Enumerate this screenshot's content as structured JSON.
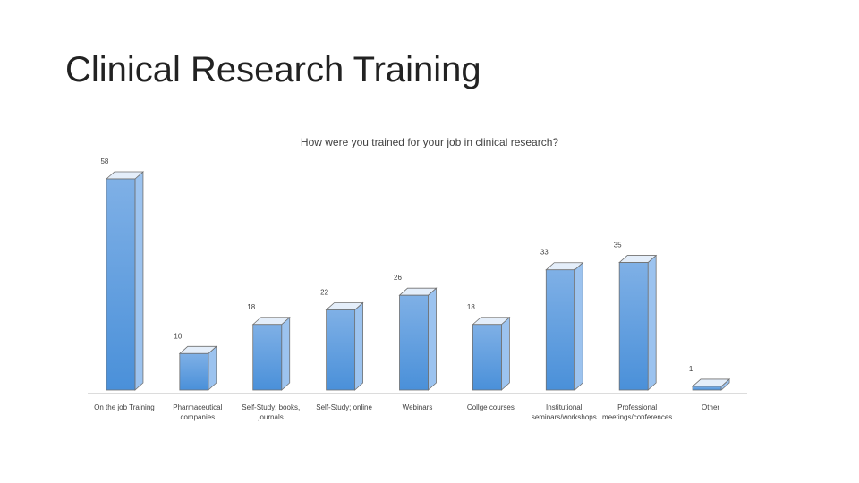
{
  "slide": {
    "title": "Clinical Research Training"
  },
  "chart_data": {
    "type": "bar",
    "title": "How were you trained for your job in clinical research?",
    "xlabel": "",
    "ylabel": "",
    "categories": [
      "On the job Training",
      "Pharmaceutical companies",
      "Self-Study; books, journals",
      "Self-Study; online",
      "Webinars",
      "Collge courses",
      "Institutional seminars/workshops",
      "Professional meetings/conferences",
      "Other"
    ],
    "values": [
      58,
      10,
      18,
      22,
      26,
      18,
      33,
      35,
      1
    ],
    "ylim": [
      0,
      60
    ],
    "grid": false,
    "legend": "none",
    "colors": {
      "bar_front": "#4a90d9",
      "bar_front_light": "#7fb0e6",
      "bar_side": "#9cc3ef",
      "bar_top": "#e4eefa",
      "bar_edge": "#707070",
      "axis": "#d0d0d0",
      "label_text": "#404040"
    }
  }
}
